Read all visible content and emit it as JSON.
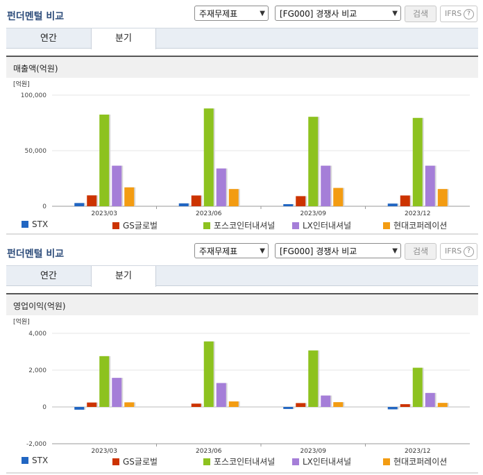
{
  "header": {
    "title": "펀더멘털 비교",
    "select_statement": "주재무제표",
    "select_compare": "[FG000] 경쟁사 비교",
    "search_label": "검색",
    "ifrs_label": "IFRS",
    "help_glyph": "?"
  },
  "tabs": [
    {
      "label": "연간",
      "active": false
    },
    {
      "label": "분기",
      "active": true
    }
  ],
  "legend": [
    {
      "name": "STX",
      "color": "#2166c2"
    },
    {
      "name": "GS글로벌",
      "color": "#cc3300"
    },
    {
      "name": "포스코인터내셔널",
      "color": "#8dc21f"
    },
    {
      "name": "LX인터내셔널",
      "color": "#a57ed8"
    },
    {
      "name": "현대코퍼레이션",
      "color": "#f39c12"
    }
  ],
  "chart_data": [
    {
      "type": "bar",
      "title": "매출액(억원)",
      "ylabel": "[억원]",
      "categories": [
        "2023/03",
        "2023/06",
        "2023/09",
        "2023/12"
      ],
      "yticks": [
        "100,000",
        "50,000",
        "0"
      ],
      "ytick_values": [
        100000,
        50000,
        0
      ],
      "ylim": [
        0,
        100000
      ],
      "series": [
        {
          "name": "STX",
          "values": [
            2900,
            2600,
            1900,
            2400
          ]
        },
        {
          "name": "GS글로벌",
          "values": [
            9800,
            9700,
            9100,
            9700
          ]
        },
        {
          "name": "포스코인터내셔널",
          "values": [
            82500,
            88000,
            80500,
            79500
          ]
        },
        {
          "name": "LX인터내셔널",
          "values": [
            36500,
            34000,
            36500,
            36500
          ]
        },
        {
          "name": "현대코퍼레이션",
          "values": [
            17000,
            15500,
            16500,
            15500
          ]
        }
      ]
    },
    {
      "type": "bar",
      "title": "영업이익(억원)",
      "ylabel": "[억원]",
      "categories": [
        "2023/03",
        "2023/06",
        "2023/09",
        "2023/12"
      ],
      "yticks": [
        "4,000",
        "2,000",
        "0",
        "-2,000"
      ],
      "ytick_values": [
        4000,
        2000,
        0,
        -2000
      ],
      "ylim": [
        -2000,
        4000
      ],
      "series": [
        {
          "name": "STX",
          "values": [
            -150,
            0,
            -110,
            -130
          ]
        },
        {
          "name": "GS글로벌",
          "values": [
            240,
            180,
            210,
            150
          ]
        },
        {
          "name": "포스코인터내셔널",
          "values": [
            2760,
            3560,
            3070,
            2130
          ]
        },
        {
          "name": "LX인터내셔널",
          "values": [
            1580,
            1300,
            620,
            760
          ]
        },
        {
          "name": "현대코퍼레이션",
          "values": [
            250,
            300,
            260,
            220
          ]
        }
      ]
    }
  ]
}
